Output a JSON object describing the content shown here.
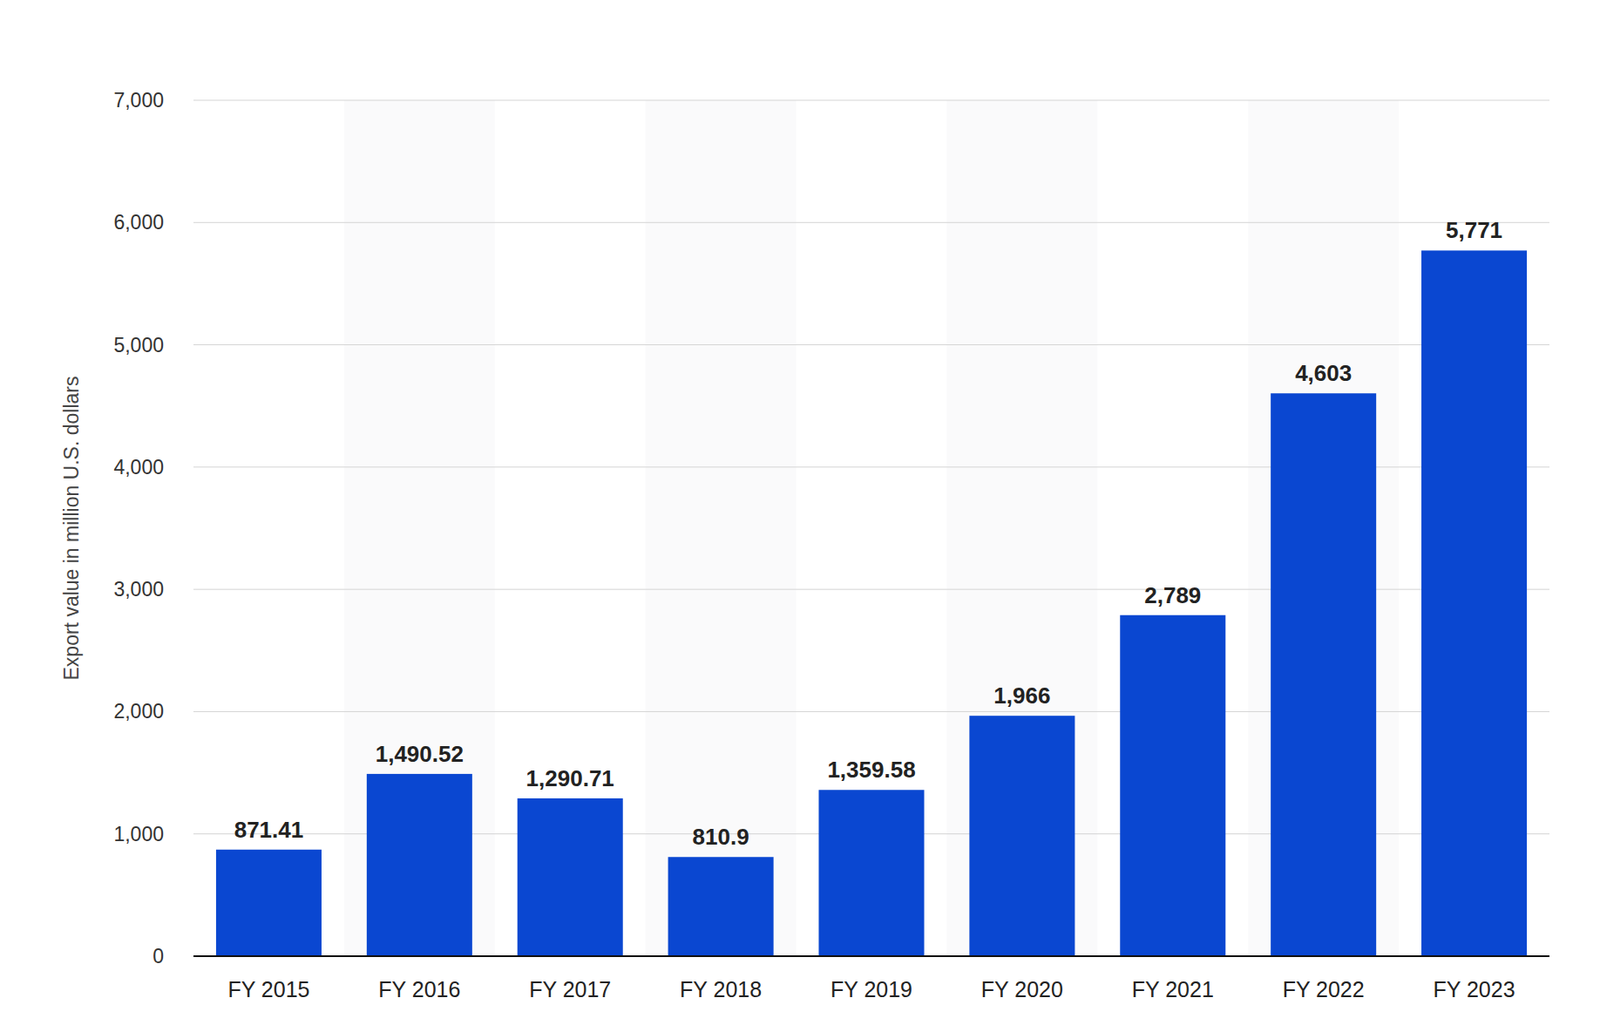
{
  "chart_data": {
    "type": "bar",
    "y_label": "Export value in million U.S. dollars",
    "categories": [
      "FY 2015",
      "FY 2016",
      "FY 2017",
      "FY 2018",
      "FY 2019",
      "FY 2020",
      "FY 2021",
      "FY 2022",
      "FY 2023"
    ],
    "values": [
      871.41,
      1490.52,
      1290.71,
      810.9,
      1359.58,
      1966,
      2789,
      4603,
      5771
    ],
    "value_labels": [
      "871.41",
      "1,490.52",
      "1,290.71",
      "810.9",
      "1,359.58",
      "1,966",
      "2,789",
      "4,603",
      "5,771"
    ],
    "color": "#0a47d1",
    "ylim": [
      0,
      7000
    ],
    "yticks": [
      0,
      {
        "value": 1000,
        "label": "1,000"
      },
      {
        "value": 2000,
        "label": "2,000"
      },
      {
        "value": 3000,
        "label": "3,000"
      },
      {
        "value": 4000,
        "label": "4,000"
      },
      {
        "value": 5000,
        "label": "5,000"
      },
      {
        "value": 6000,
        "label": "6,000"
      },
      {
        "value": 7000,
        "label": "7,000"
      }
    ],
    "grid": true,
    "data_labels": true
  }
}
